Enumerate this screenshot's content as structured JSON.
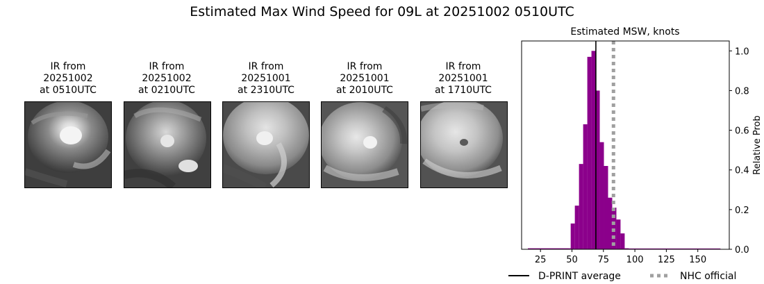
{
  "title": "Estimated Max Wind Speed for 09L at 20251002 0510UTC",
  "ir_panels": [
    {
      "line1": "IR from",
      "line2": "20251002",
      "line3": "at 0510UTC"
    },
    {
      "line1": "IR from",
      "line2": "20251002",
      "line3": "at 0210UTC"
    },
    {
      "line1": "IR from",
      "line2": "20251001",
      "line3": "at 2310UTC"
    },
    {
      "line1": "IR from",
      "line2": "20251001",
      "line3": "at 2010UTC"
    },
    {
      "line1": "IR from",
      "line2": "20251001",
      "line3": "at 1710UTC"
    }
  ],
  "chart_data": {
    "type": "bar",
    "title": "Estimated MSW, knots",
    "xlabel": "",
    "ylabel": "Relative Prob",
    "xlim": [
      10,
      175
    ],
    "ylim": [
      0,
      1.05
    ],
    "x_ticks": [
      25,
      50,
      75,
      100,
      125,
      150
    ],
    "y_ticks": [
      0.0,
      0.2,
      0.4,
      0.6,
      0.8,
      1.0
    ],
    "y_tick_labels": [
      "0.0",
      "0.2",
      "0.4",
      "0.6",
      "0.8",
      "1.0"
    ],
    "y_axis_side": "right",
    "bar_color": "#8b008b",
    "bin_width": 3.3,
    "bins": [
      {
        "x0": 15.0,
        "value": 0.005
      },
      {
        "x0": 48.0,
        "value": 0.005
      },
      {
        "x0": 49.0,
        "value": 0.13
      },
      {
        "x0": 52.3,
        "value": 0.22
      },
      {
        "x0": 55.6,
        "value": 0.43
      },
      {
        "x0": 58.9,
        "value": 0.63
      },
      {
        "x0": 62.2,
        "value": 0.97
      },
      {
        "x0": 65.5,
        "value": 1.0
      },
      {
        "x0": 68.8,
        "value": 0.8
      },
      {
        "x0": 72.1,
        "value": 0.54
      },
      {
        "x0": 75.4,
        "value": 0.42
      },
      {
        "x0": 78.7,
        "value": 0.26
      },
      {
        "x0": 82.0,
        "value": 0.21
      },
      {
        "x0": 85.3,
        "value": 0.15
      },
      {
        "x0": 88.6,
        "value": 0.08
      },
      {
        "x0": 91.9,
        "value": 0.005
      },
      {
        "x0": 95.2,
        "value": 0.004
      }
    ],
    "tail_end": 168,
    "vlines": [
      {
        "name": "D-PRINT average",
        "x": 69,
        "color": "#000000",
        "style": "solid"
      },
      {
        "name": "NHC official",
        "x": 83,
        "color": "#a0a0a0",
        "style": "dotted"
      }
    ],
    "legend": {
      "placement": "below",
      "entries": [
        {
          "label": "D-PRINT average",
          "color": "#000000",
          "style": "solid"
        },
        {
          "label": "NHC official",
          "color": "#a0a0a0",
          "style": "dotted"
        }
      ]
    }
  }
}
